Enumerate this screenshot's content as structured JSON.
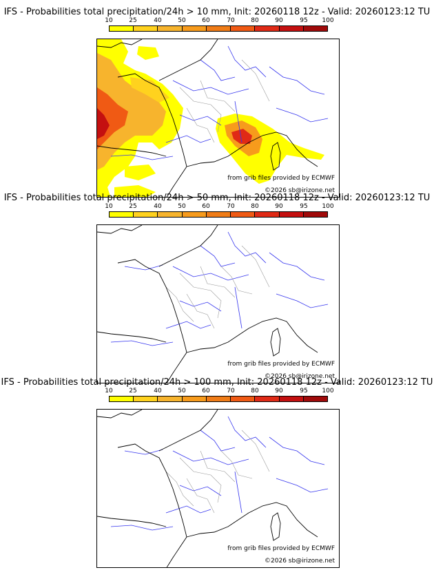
{
  "colorbar": {
    "ticks": [
      "10",
      "25",
      "40",
      "50",
      "60",
      "70",
      "80",
      "90",
      "95",
      "100"
    ],
    "colors": [
      "#ffff00",
      "#ffd21e",
      "#f7b42d",
      "#f79b1c",
      "#f07c17",
      "#f05a14",
      "#e02a16",
      "#c41010",
      "#a00a0a",
      "#6e0000"
    ]
  },
  "credits": {
    "source": "from grib files provided by ECMWF",
    "copyright": "©2026 sb@irizone.net"
  },
  "panels": [
    {
      "title": "IFS - Probabilities total precipitation/24h > 10 mm, Init: 20260118 12z - Valid: 20260123:12 TU",
      "threshold_mm": 10,
      "has_precip": true
    },
    {
      "title": "IFS - Probabilities total precipitation/24h > 50 mm, Init: 20260118 12z - Valid: 20260123:12 TU",
      "threshold_mm": 50,
      "has_precip": false
    },
    {
      "title": "IFS - Probabilities total precipitation/24h > 100 mm, Init: 20260118 12z - Valid: 20260123:12 TU",
      "threshold_mm": 100,
      "has_precip": false
    }
  ]
}
